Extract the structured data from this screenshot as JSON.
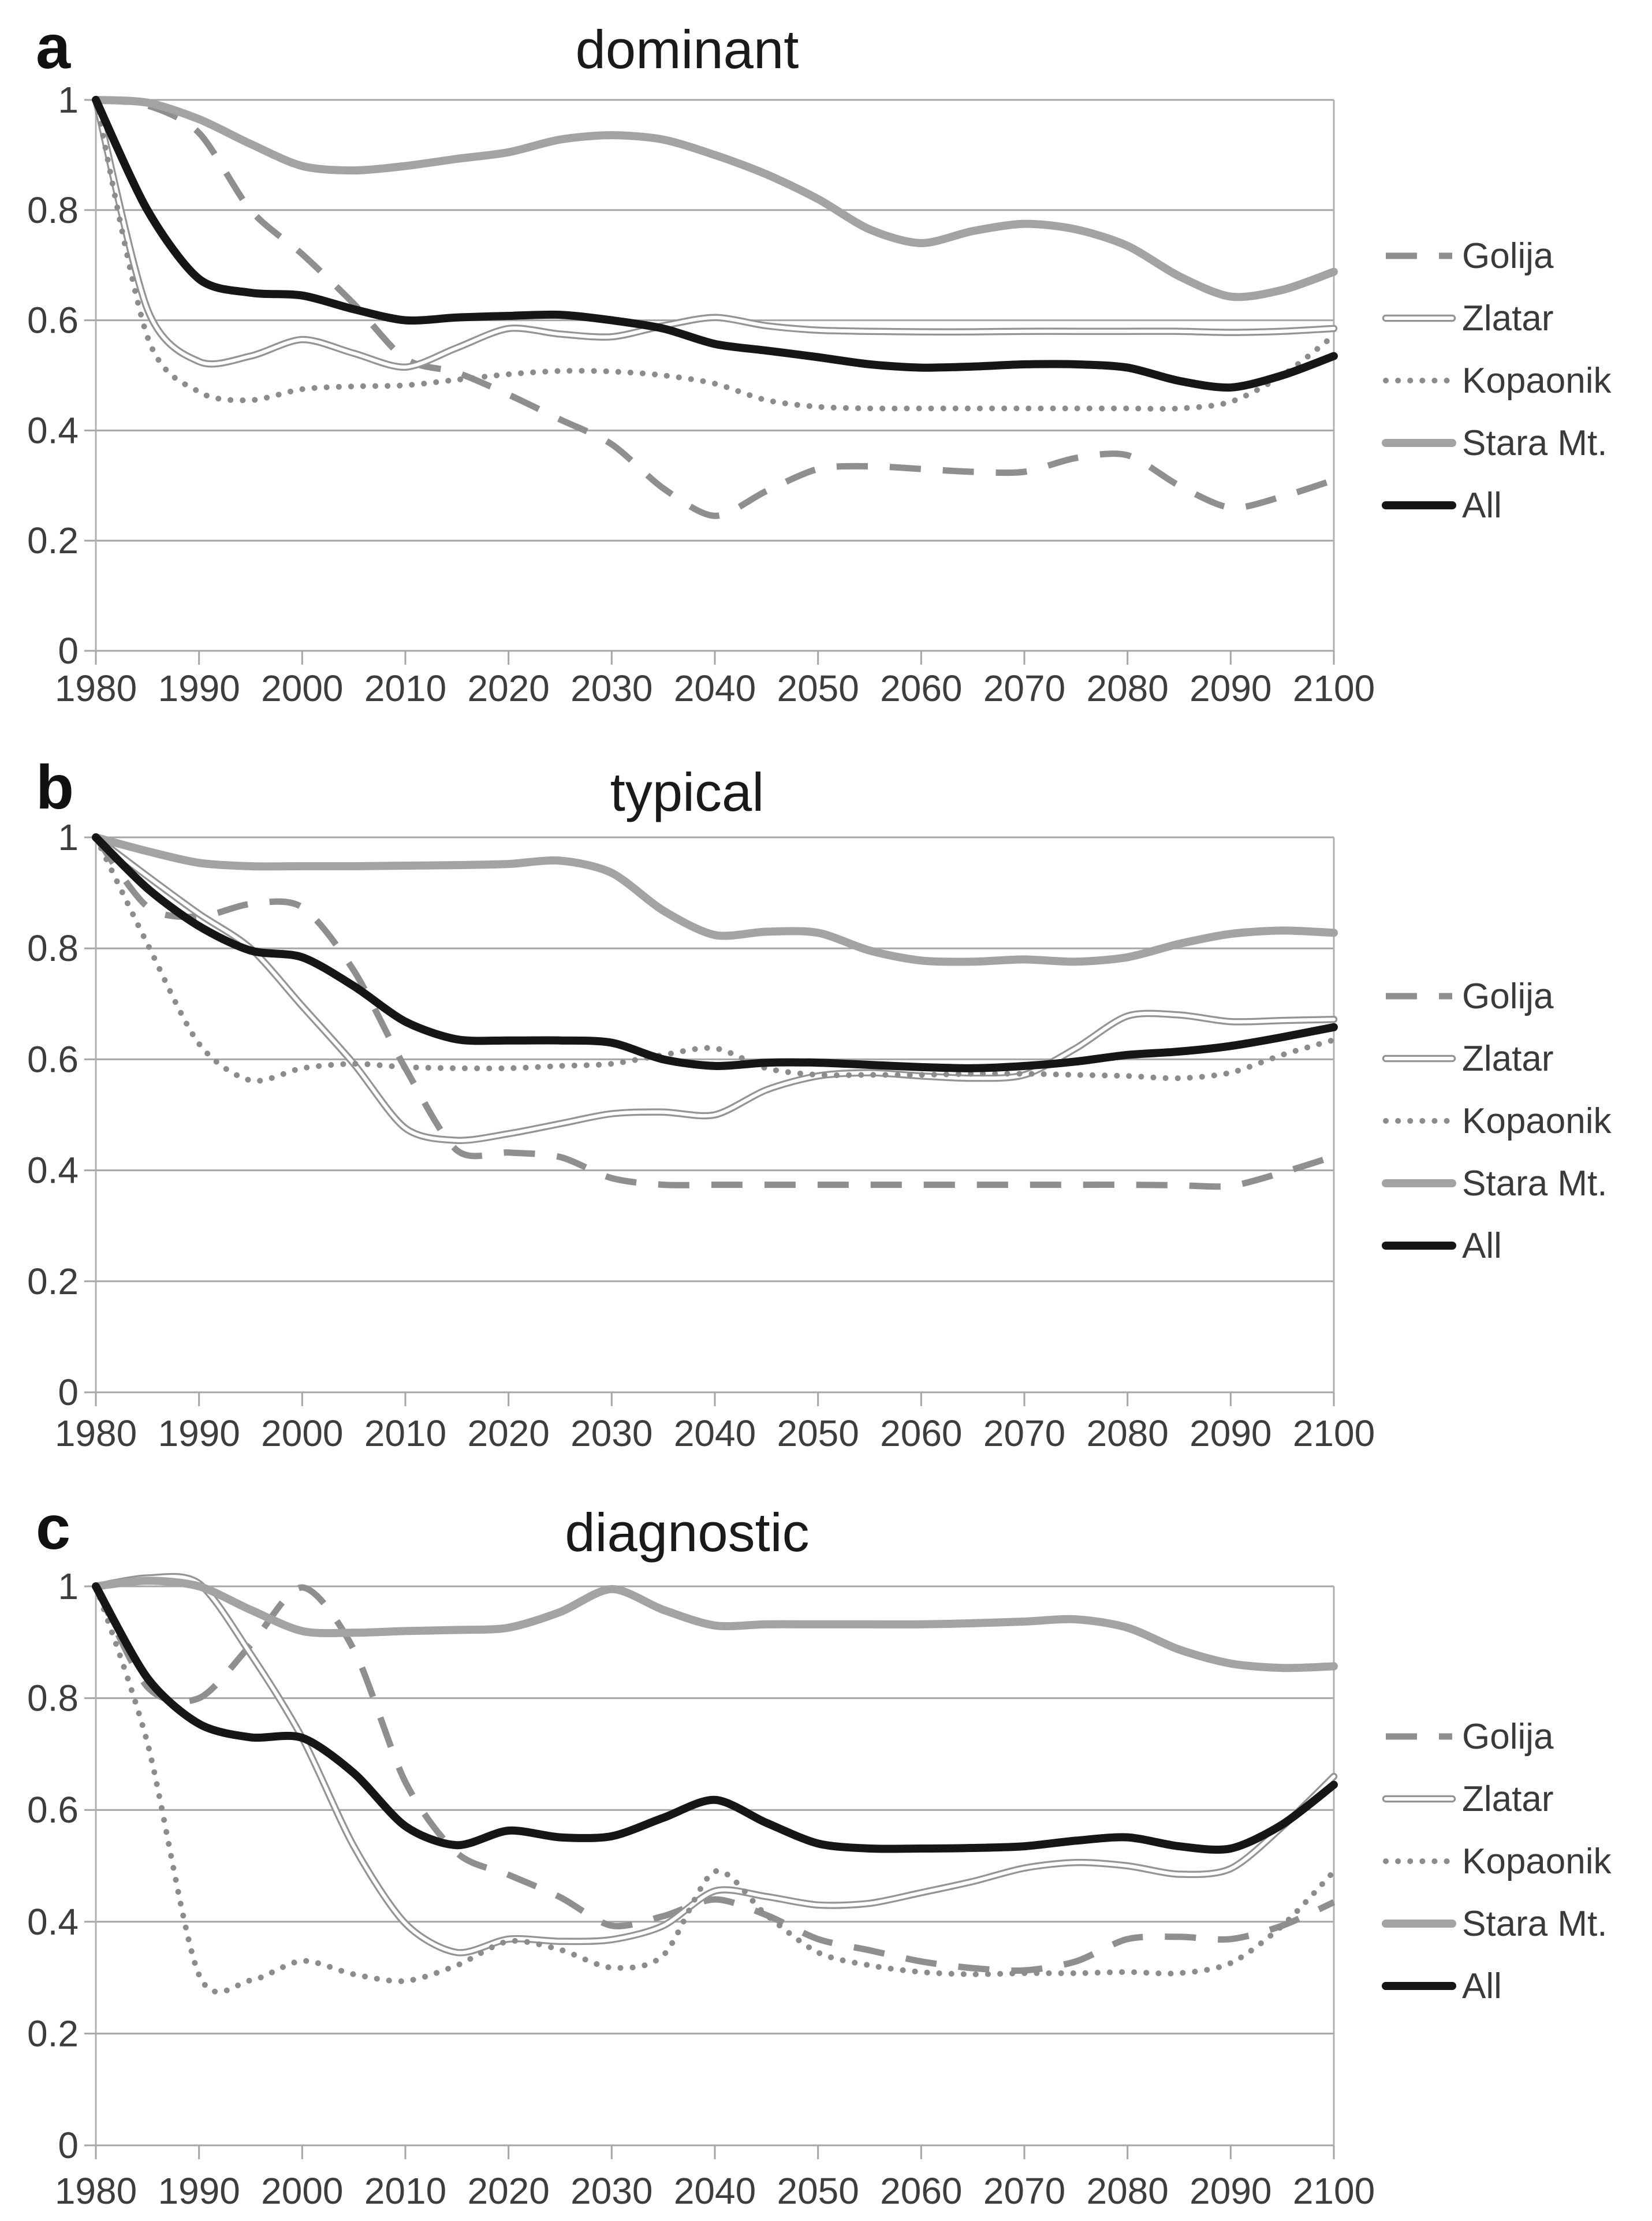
{
  "figure": {
    "background": "#ffffff",
    "grid_color": "#a6a6a6",
    "axis_color": "#b0b0b0",
    "tick_text_color": "#3d3d3d",
    "panels": [
      {
        "letter": "a",
        "title": "dominant"
      },
      {
        "letter": "b",
        "title": "typical"
      },
      {
        "letter": "c",
        "title": "diagnostic"
      }
    ],
    "legend": {
      "position": "right",
      "entries": [
        {
          "label": "Golija",
          "style": "dashed",
          "color": "#8f8f8f"
        },
        {
          "label": "Zlatar",
          "style": "double",
          "color": "#949494"
        },
        {
          "label": "Kopaonik",
          "style": "dotted",
          "color": "#8c8c8c"
        },
        {
          "label": "Stara Mt.",
          "style": "solid",
          "color": "#a3a3a3"
        },
        {
          "label": "All",
          "style": "solid",
          "color": "#161616"
        }
      ]
    }
  },
  "chart_data": [
    {
      "type": "line",
      "panel": "a",
      "title": "dominant",
      "xlabel": "",
      "ylabel": "",
      "grid": true,
      "legend_position": "right",
      "ylim": [
        0,
        1
      ],
      "x_ticks": [
        1980,
        1990,
        2000,
        2010,
        2020,
        2030,
        2040,
        2050,
        2060,
        2070,
        2080,
        2090,
        2100
      ],
      "y_ticks": [
        "1",
        "0.8",
        "0.6",
        "0.4",
        "0.2",
        "0"
      ],
      "y_tick_values": [
        1,
        0.8,
        0.6,
        0.4,
        0.2,
        0
      ],
      "x": [
        1980,
        1985,
        1990,
        1995,
        2000,
        2005,
        2010,
        2015,
        2020,
        2025,
        2030,
        2035,
        2040,
        2045,
        2050,
        2055,
        2060,
        2065,
        2070,
        2075,
        2080,
        2085,
        2090,
        2095,
        2100
      ],
      "series": [
        {
          "name": "Golija",
          "style": "dashed",
          "values": [
            1.0,
            0.99,
            0.94,
            0.8,
            0.72,
            0.63,
            0.53,
            0.505,
            0.465,
            0.42,
            0.375,
            0.295,
            0.245,
            0.29,
            0.33,
            0.335,
            0.33,
            0.325,
            0.325,
            0.35,
            0.355,
            0.3,
            0.26,
            0.28,
            0.31
          ]
        },
        {
          "name": "Zlatar",
          "style": "double",
          "values": [
            1.0,
            0.62,
            0.525,
            0.535,
            0.565,
            0.54,
            0.515,
            0.55,
            0.585,
            0.575,
            0.57,
            0.59,
            0.605,
            0.59,
            0.582,
            0.58,
            0.579,
            0.579,
            0.58,
            0.58,
            0.58,
            0.58,
            0.578,
            0.58,
            0.585
          ]
        },
        {
          "name": "Kopaonik",
          "style": "dotted",
          "values": [
            1.0,
            0.57,
            0.47,
            0.455,
            0.475,
            0.48,
            0.482,
            0.492,
            0.502,
            0.508,
            0.507,
            0.5,
            0.485,
            0.455,
            0.443,
            0.44,
            0.44,
            0.44,
            0.44,
            0.44,
            0.44,
            0.44,
            0.452,
            0.5,
            0.572
          ]
        },
        {
          "name": "Stara Mt.",
          "style": "solid",
          "values": [
            1.0,
            0.995,
            0.965,
            0.92,
            0.88,
            0.872,
            0.88,
            0.893,
            0.905,
            0.928,
            0.936,
            0.928,
            0.9,
            0.865,
            0.82,
            0.765,
            0.74,
            0.762,
            0.775,
            0.765,
            0.735,
            0.68,
            0.643,
            0.655,
            0.688
          ]
        },
        {
          "name": "All",
          "style": "solid",
          "values": [
            1.0,
            0.8,
            0.675,
            0.65,
            0.645,
            0.62,
            0.6,
            0.605,
            0.608,
            0.61,
            0.6,
            0.585,
            0.557,
            0.545,
            0.533,
            0.52,
            0.514,
            0.516,
            0.52,
            0.52,
            0.514,
            0.49,
            0.478,
            0.5,
            0.535
          ]
        }
      ]
    },
    {
      "type": "line",
      "panel": "b",
      "title": "typical",
      "xlabel": "",
      "ylabel": "",
      "grid": true,
      "legend_position": "right",
      "ylim": [
        0,
        1
      ],
      "x_ticks": [
        1980,
        1990,
        2000,
        2010,
        2020,
        2030,
        2040,
        2050,
        2060,
        2070,
        2080,
        2090,
        2100
      ],
      "y_ticks": [
        "1",
        "0.8",
        "0.6",
        "0.4",
        "0.2",
        "0"
      ],
      "y_tick_values": [
        1,
        0.8,
        0.6,
        0.4,
        0.2,
        0
      ],
      "x": [
        1980,
        1985,
        1990,
        1995,
        2000,
        2005,
        2010,
        2015,
        2020,
        2025,
        2030,
        2035,
        2040,
        2045,
        2050,
        2055,
        2060,
        2065,
        2070,
        2075,
        2080,
        2085,
        2090,
        2095,
        2100
      ],
      "series": [
        {
          "name": "Golija",
          "style": "dashed",
          "values": [
            1.0,
            0.875,
            0.857,
            0.88,
            0.874,
            0.76,
            0.584,
            0.436,
            0.432,
            0.424,
            0.386,
            0.374,
            0.374,
            0.374,
            0.374,
            0.374,
            0.374,
            0.374,
            0.374,
            0.374,
            0.374,
            0.373,
            0.372,
            0.396,
            0.425
          ]
        },
        {
          "name": "Zlatar",
          "style": "double",
          "values": [
            1.0,
            0.93,
            0.862,
            0.8,
            0.696,
            0.592,
            0.476,
            0.454,
            0.466,
            0.484,
            0.502,
            0.505,
            0.5,
            0.545,
            0.57,
            0.576,
            0.57,
            0.566,
            0.572,
            0.62,
            0.678,
            0.68,
            0.668,
            0.67,
            0.672
          ]
        },
        {
          "name": "Kopaonik",
          "style": "dotted",
          "values": [
            1.0,
            0.808,
            0.628,
            0.562,
            0.584,
            0.592,
            0.586,
            0.584,
            0.584,
            0.588,
            0.592,
            0.608,
            0.62,
            0.584,
            0.572,
            0.572,
            0.572,
            0.574,
            0.574,
            0.572,
            0.57,
            0.566,
            0.576,
            0.608,
            0.635
          ]
        },
        {
          "name": "Stara Mt.",
          "style": "solid",
          "values": [
            1.0,
            0.975,
            0.954,
            0.948,
            0.948,
            0.948,
            0.949,
            0.95,
            0.952,
            0.958,
            0.936,
            0.868,
            0.824,
            0.83,
            0.828,
            0.796,
            0.778,
            0.776,
            0.78,
            0.776,
            0.784,
            0.808,
            0.826,
            0.832,
            0.828
          ]
        },
        {
          "name": "All",
          "style": "solid",
          "values": [
            1.0,
            0.908,
            0.84,
            0.796,
            0.784,
            0.732,
            0.668,
            0.636,
            0.634,
            0.634,
            0.63,
            0.6,
            0.588,
            0.594,
            0.594,
            0.59,
            0.586,
            0.584,
            0.588,
            0.596,
            0.608,
            0.614,
            0.624,
            0.64,
            0.658
          ]
        }
      ]
    },
    {
      "type": "line",
      "panel": "c",
      "title": "diagnostic",
      "xlabel": "",
      "ylabel": "",
      "grid": true,
      "legend_position": "right",
      "ylim": [
        0,
        1
      ],
      "x_ticks": [
        1980,
        1990,
        2000,
        2010,
        2020,
        2030,
        2040,
        2050,
        2060,
        2070,
        2080,
        2090,
        2100
      ],
      "y_ticks": [
        "1",
        "0.8",
        "0.6",
        "0.4",
        "0.2",
        "0"
      ],
      "y_tick_values": [
        1,
        0.8,
        0.6,
        0.4,
        0.2,
        0
      ],
      "x": [
        1980,
        1985,
        1990,
        1995,
        2000,
        2005,
        2010,
        2015,
        2020,
        2025,
        2030,
        2035,
        2040,
        2045,
        2050,
        2055,
        2060,
        2065,
        2070,
        2075,
        2080,
        2085,
        2090,
        2095,
        2100
      ],
      "series": [
        {
          "name": "Golija",
          "style": "dashed",
          "values": [
            1.0,
            0.82,
            0.8,
            0.895,
            0.998,
            0.887,
            0.65,
            0.523,
            0.484,
            0.444,
            0.393,
            0.41,
            0.44,
            0.412,
            0.369,
            0.349,
            0.329,
            0.317,
            0.313,
            0.329,
            0.369,
            0.373,
            0.369,
            0.393,
            0.435
          ]
        },
        {
          "name": "Zlatar",
          "style": "double",
          "values": [
            1.0,
            1.015,
            1.005,
            0.879,
            0.729,
            0.535,
            0.397,
            0.345,
            0.369,
            0.365,
            0.368,
            0.393,
            0.455,
            0.445,
            0.43,
            0.433,
            0.452,
            0.472,
            0.496,
            0.506,
            0.5,
            0.485,
            0.495,
            0.57,
            0.66
          ]
        },
        {
          "name": "Kopaonik",
          "style": "dotted",
          "values": [
            1.0,
            0.72,
            0.305,
            0.295,
            0.33,
            0.306,
            0.294,
            0.322,
            0.365,
            0.35,
            0.318,
            0.34,
            0.49,
            0.412,
            0.345,
            0.322,
            0.31,
            0.306,
            0.308,
            0.308,
            0.31,
            0.308,
            0.326,
            0.393,
            0.49
          ]
        },
        {
          "name": "Stara Mt.",
          "style": "solid",
          "values": [
            1.0,
            1.01,
            1.0,
            0.958,
            0.92,
            0.917,
            0.92,
            0.922,
            0.926,
            0.954,
            0.995,
            0.958,
            0.93,
            0.932,
            0.932,
            0.932,
            0.932,
            0.934,
            0.937,
            0.941,
            0.926,
            0.887,
            0.862,
            0.854,
            0.857
          ]
        },
        {
          "name": "All",
          "style": "solid",
          "values": [
            1.0,
            0.836,
            0.754,
            0.73,
            0.729,
            0.666,
            0.571,
            0.537,
            0.563,
            0.551,
            0.553,
            0.586,
            0.618,
            0.577,
            0.54,
            0.531,
            0.531,
            0.532,
            0.535,
            0.545,
            0.551,
            0.535,
            0.531,
            0.574,
            0.645
          ]
        }
      ]
    }
  ]
}
